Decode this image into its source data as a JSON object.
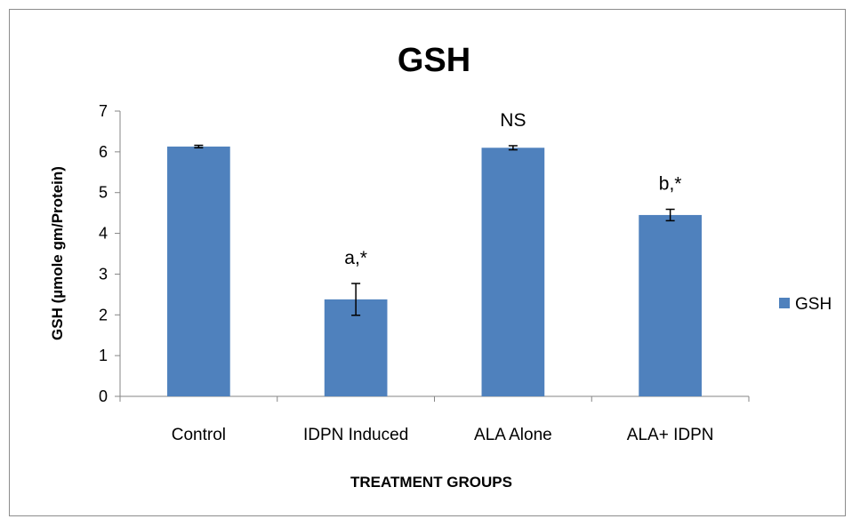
{
  "chart_data": {
    "type": "bar",
    "title": "GSH",
    "xlabel": "TREATMENT GROUPS",
    "ylabel": "GSH (µmole gm/Protein)",
    "ylim": [
      0,
      7
    ],
    "yticks": [
      0,
      1,
      2,
      3,
      4,
      5,
      6,
      7
    ],
    "categories": [
      "Control",
      "IDPN Induced",
      "ALA Alone",
      "ALA+ IDPN"
    ],
    "series": [
      {
        "name": "GSH",
        "color": "#4f81bd",
        "values": [
          6.13,
          2.38,
          6.1,
          4.45
        ],
        "errors": [
          0.03,
          0.39,
          0.05,
          0.14
        ]
      }
    ],
    "annotations": [
      "",
      "a,*",
      "NS",
      "b,*"
    ],
    "legend_position": "right",
    "grid": false
  }
}
